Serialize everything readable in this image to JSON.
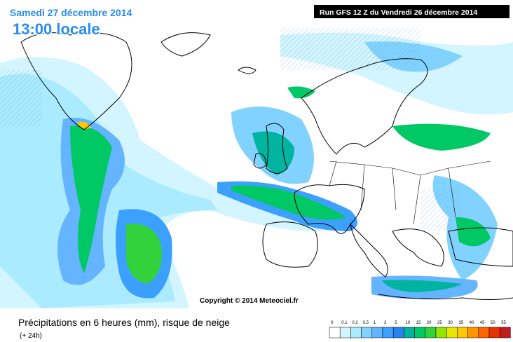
{
  "header": {
    "date": "Samedi 27 décembre 2014",
    "time": "13:00 locale",
    "run": "Run GFS 12 Z du Vendredi 26 décembre 2014"
  },
  "copyright": "Copyright © 2014 Meteociel.fr",
  "footer": {
    "title": "Précipitations en 6 heures (mm), risque de neige",
    "lead": "(+ 24h)"
  },
  "legend": {
    "labels": [
      0,
      0.1,
      0.2,
      0.5,
      1,
      2,
      5,
      10,
      15,
      20,
      25,
      30,
      35,
      40,
      45,
      50,
      55
    ],
    "colors": [
      "#ffffff",
      "#d2f5ff",
      "#aaebff",
      "#82d2ff",
      "#64b4ff",
      "#3ca0ff",
      "#2882f0",
      "#00b4a0",
      "#00c864",
      "#32d23c",
      "#96e600",
      "#e6e600",
      "#ffc800",
      "#ff9600",
      "#ff6400",
      "#e63200",
      "#be1e1e"
    ]
  }
}
